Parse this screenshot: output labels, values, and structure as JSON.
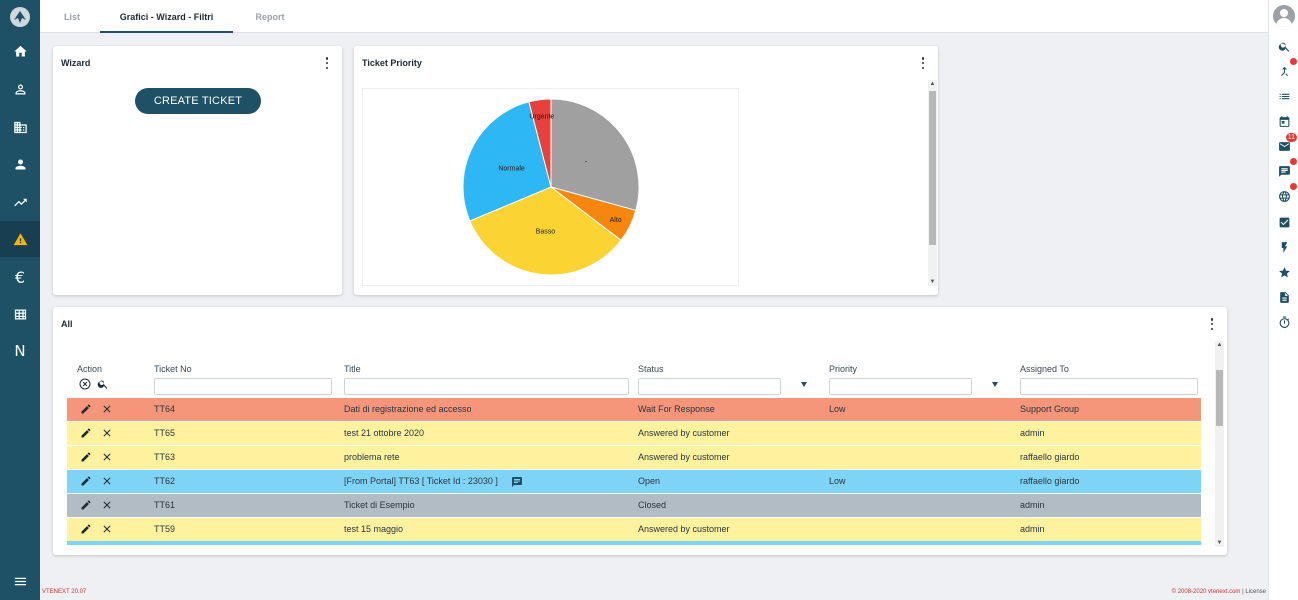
{
  "tabs": [
    {
      "label": "List",
      "active": false
    },
    {
      "label": "Grafici - Wizard - Filtri",
      "active": true
    },
    {
      "label": "Report",
      "active": false
    }
  ],
  "left_nav": [
    {
      "icon": "home-icon"
    },
    {
      "icon": "contacts-icon"
    },
    {
      "icon": "building-icon"
    },
    {
      "icon": "person-icon"
    },
    {
      "icon": "trending-icon"
    },
    {
      "icon": "warning-icon",
      "active": true
    },
    {
      "icon": "euro-icon"
    },
    {
      "icon": "table-icon"
    },
    {
      "icon": "n-letter-icon",
      "text": "N"
    },
    {
      "icon": "menu-icon"
    }
  ],
  "right_nav": {
    "badges": {
      "mail": "11",
      "chat": "",
      "globe": "",
      "filter": ""
    }
  },
  "wizard": {
    "title": "Wizard",
    "create_button": "CREATE TICKET"
  },
  "priority_card": {
    "title": "Ticket Priority"
  },
  "chart_data": {
    "type": "pie",
    "title": "",
    "slices": [
      {
        "label": "-",
        "value": 29,
        "color": "#a0a0a0"
      },
      {
        "label": "Alto",
        "value": 6,
        "color": "#f7860f"
      },
      {
        "label": "Basso",
        "value": 33,
        "color": "#fbd433"
      },
      {
        "label": "Normale",
        "value": 27,
        "color": "#2db7f5"
      },
      {
        "label": "Urgente",
        "value": 4,
        "color": "#e8403a"
      }
    ],
    "legend": "none",
    "start_angle_deg": 0
  },
  "all_card": {
    "title": "All",
    "columns": {
      "action": "Action",
      "ticket_no": "Ticket No",
      "title": "Title",
      "status": "Status",
      "priority": "Priority",
      "assigned_to": "Assigned To"
    },
    "rows": [
      {
        "ticket_no": "TT64",
        "title": "Dati di registrazione ed accesso",
        "status": "Wait For Response",
        "priority": "Low",
        "assigned_to": "Support Group",
        "color": "#f5957a",
        "comment": false
      },
      {
        "ticket_no": "TT65",
        "title": "test 21 ottobre 2020",
        "status": "Answered by customer",
        "priority": "",
        "assigned_to": "admin",
        "color": "#fef29f",
        "comment": false
      },
      {
        "ticket_no": "TT63",
        "title": "problema rete",
        "status": "Answered by customer",
        "priority": "",
        "assigned_to": "raffaello giardo",
        "color": "#fef29f",
        "comment": false
      },
      {
        "ticket_no": "TT62",
        "title": "[From Portal] TT63 [ Ticket Id : 23030 ]",
        "status": "Open",
        "priority": "Low",
        "assigned_to": "raffaello giardo",
        "color": "#7ed4f6",
        "comment": true
      },
      {
        "ticket_no": "TT61",
        "title": "Ticket di Esempio",
        "status": "Closed",
        "priority": "",
        "assigned_to": "admin",
        "color": "#b1bcc4",
        "comment": false
      },
      {
        "ticket_no": "TT59",
        "title": "test 15 maggio",
        "status": "Answered by customer",
        "priority": "",
        "assigned_to": "admin",
        "color": "#fef29f",
        "comment": false
      }
    ]
  },
  "footer": {
    "version": "VTENEXT 20.07",
    "copyright": "© 2008-2020 vtenext.com",
    "separator": "|",
    "license": "License"
  }
}
